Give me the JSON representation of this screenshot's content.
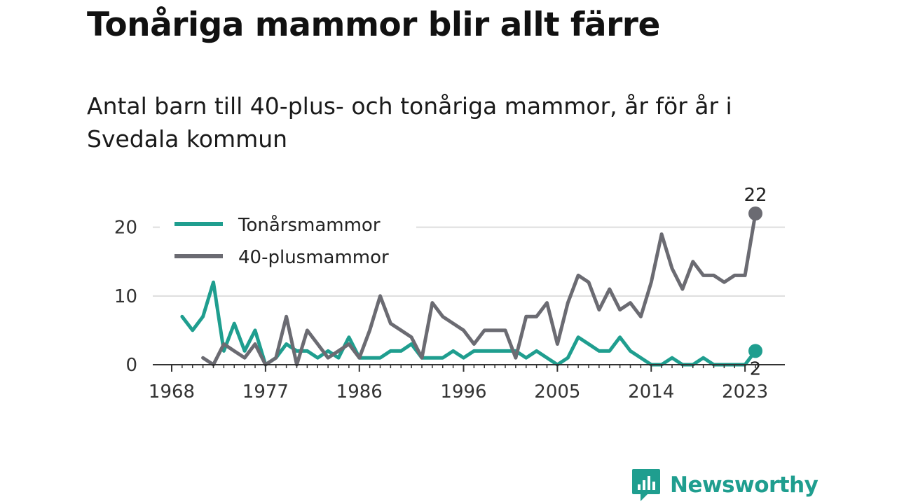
{
  "title": "Tonåriga mammor blir allt färre",
  "subtitle": "Antal barn till 40-plus- och tonåriga mammor, år för år i Svedala kommun",
  "brand": {
    "name": "Newsworthy",
    "icon": "chart-bubble-icon",
    "color": "#1f9e8f"
  },
  "chart_data": {
    "type": "line",
    "x_ticks": [
      1968,
      1977,
      1986,
      1996,
      2005,
      2014,
      2023
    ],
    "y_ticks": [
      0,
      10,
      20
    ],
    "xlim": [
      1968,
      2024
    ],
    "ylim": [
      0,
      22
    ],
    "grid": true,
    "legend_position": "top-left",
    "series": [
      {
        "name": "Tonårsmammor",
        "color": "#1f9e8f",
        "start_year": 1969,
        "values": [
          7,
          5,
          7,
          12,
          2,
          6,
          2,
          5,
          0,
          1,
          3,
          2,
          2,
          1,
          2,
          1,
          4,
          1,
          1,
          1,
          2,
          2,
          3,
          1,
          1,
          1,
          2,
          1,
          2,
          2,
          2,
          2,
          2,
          1,
          2,
          1,
          0,
          1,
          4,
          3,
          2,
          2,
          4,
          2,
          1,
          0,
          0,
          1,
          0,
          0,
          1,
          0,
          0,
          0,
          0,
          2
        ],
        "end_label": "2"
      },
      {
        "name": "40-plusmammor",
        "color": "#6b6b72",
        "start_year": 1971,
        "values": [
          1,
          0,
          3,
          2,
          1,
          3,
          0,
          1,
          7,
          0,
          5,
          3,
          1,
          2,
          3,
          1,
          5,
          10,
          6,
          5,
          4,
          1,
          9,
          7,
          6,
          5,
          3,
          5,
          5,
          5,
          1,
          7,
          7,
          9,
          3,
          9,
          13,
          12,
          8,
          11,
          8,
          9,
          7,
          12,
          19,
          14,
          11,
          15,
          13,
          13,
          12,
          13,
          13,
          22
        ],
        "end_label": "22"
      }
    ]
  }
}
